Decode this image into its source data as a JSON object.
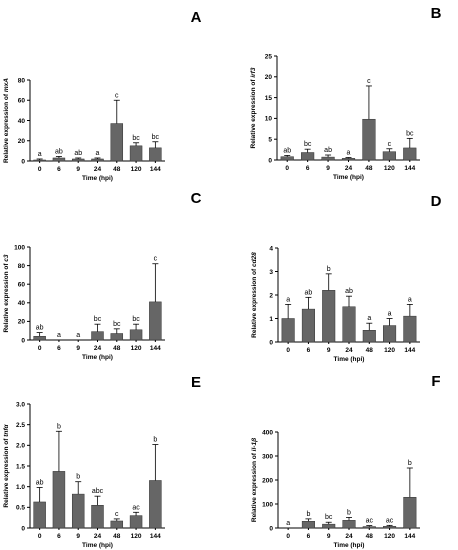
{
  "chart_data": [
    {
      "type": "bar",
      "panel": "A",
      "ylabel_prefix": "Relative expression of",
      "gene": "mxA",
      "xlabel": "Time (hpi)",
      "categories": [
        "0",
        "6",
        "9",
        "24",
        "48",
        "120",
        "144"
      ],
      "values": [
        1,
        3,
        2,
        2,
        37,
        15,
        13
      ],
      "errors": [
        1,
        1.5,
        1,
        1,
        23,
        3,
        6
      ],
      "letters": [
        "a",
        "ab",
        "ab",
        "a",
        "c",
        "bc",
        "bc"
      ],
      "ylim": [
        0,
        80
      ],
      "yticks": [
        0,
        20,
        40,
        60,
        80
      ]
    },
    {
      "type": "bar",
      "panel": "B",
      "ylabel_prefix": "Relative expression of",
      "gene": "irf3",
      "xlabel": "Time (hpi)",
      "categories": [
        "0",
        "6",
        "9",
        "24",
        "48",
        "120",
        "144"
      ],
      "values": [
        0.8,
        1.8,
        0.7,
        0.4,
        9.8,
        2.0,
        2.9
      ],
      "errors": [
        0.3,
        0.8,
        0.5,
        0.2,
        8.0,
        0.7,
        2.3
      ],
      "letters": [
        "ab",
        "bc",
        "ab",
        "a",
        "c",
        "c",
        "bc"
      ],
      "ylim": [
        0,
        25
      ],
      "yticks": [
        0,
        5,
        10,
        15,
        20,
        25
      ]
    },
    {
      "type": "bar",
      "panel": "C",
      "ylabel_prefix": "Relative expression of",
      "gene": "c3",
      "xlabel": "Time (hpi)",
      "categories": [
        "0",
        "6",
        "9",
        "24",
        "48",
        "120",
        "144"
      ],
      "values": [
        4,
        0,
        0,
        9,
        7,
        11,
        41
      ],
      "errors": [
        4,
        0,
        0,
        8,
        5,
        6,
        41
      ],
      "letters": [
        "ab",
        "a",
        "a",
        "bc",
        "bc",
        "bc",
        "c"
      ],
      "ylim": [
        0,
        100
      ],
      "yticks": [
        0,
        20,
        40,
        60,
        80,
        100
      ]
    },
    {
      "type": "bar",
      "panel": "D",
      "ylabel_prefix": "Relative expression of",
      "gene": "cd28",
      "xlabel": "Time (hpi)",
      "categories": [
        "0",
        "6",
        "9",
        "24",
        "48",
        "120",
        "144"
      ],
      "values": [
        1.0,
        1.4,
        2.2,
        1.5,
        0.5,
        0.7,
        1.1
      ],
      "errors": [
        0.6,
        0.5,
        0.7,
        0.45,
        0.3,
        0.3,
        0.5
      ],
      "letters": [
        "a",
        "ab",
        "b",
        "ab",
        "a",
        "a",
        "a"
      ],
      "ylim": [
        0,
        4
      ],
      "yticks": [
        0,
        1,
        2,
        3,
        4
      ]
    },
    {
      "type": "bar",
      "panel": "E",
      "ylabel_prefix": "Relative expression of",
      "gene": "tnfα",
      "xlabel": "Time (hpi)",
      "categories": [
        "0",
        "6",
        "9",
        "24",
        "48",
        "120",
        "144"
      ],
      "values": [
        0.63,
        1.37,
        0.82,
        0.55,
        0.17,
        0.3,
        1.15
      ],
      "errors": [
        0.35,
        0.97,
        0.3,
        0.22,
        0.05,
        0.08,
        0.87
      ],
      "letters": [
        "ab",
        "b",
        "b",
        "abc",
        "c",
        "ac",
        "b"
      ],
      "ylim": [
        0,
        3.0
      ],
      "yticks": [
        0,
        0.5,
        1.0,
        1.5,
        2.0,
        2.5,
        3.0
      ],
      "ytick_labels": [
        "0",
        "0.5",
        "1.0",
        "1.5",
        "2.0",
        "2.5",
        "3.0"
      ]
    },
    {
      "type": "bar",
      "panel": "F",
      "ylabel_prefix": "Relative expression of",
      "gene": "il-1β",
      "xlabel": "Time (hpi)",
      "categories": [
        "0",
        "6",
        "9",
        "24",
        "48",
        "120",
        "144"
      ],
      "values": [
        0,
        28,
        16,
        32,
        6,
        7,
        128
      ],
      "errors": [
        0,
        10,
        8,
        12,
        4,
        4,
        122
      ],
      "letters": [
        "a",
        "b",
        "bc",
        "b",
        "ac",
        "ac",
        "b"
      ],
      "ylim": [
        0,
        400
      ],
      "yticks": [
        0,
        100,
        200,
        300,
        400
      ]
    }
  ],
  "colors": {
    "bar": "#666666",
    "axis": "#000000"
  }
}
